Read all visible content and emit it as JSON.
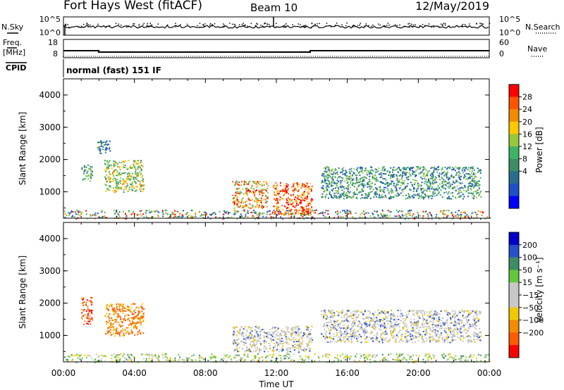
{
  "header": {
    "station": "Fort Hays West (fitACF)",
    "beam": "Beam 10",
    "date": "12/May/2019",
    "cpid_label": "CPID",
    "cpid_value": "normal (fast) 151 IF"
  },
  "top_panels": {
    "noise": {
      "left_label": "N.Sky",
      "right_label": "N.Search",
      "left_ticks": [
        "10^5",
        "10^0"
      ],
      "right_ticks": [
        "10^5",
        "10^0"
      ]
    },
    "freq": {
      "left_label_1": "Freq.",
      "left_label_2": "[MHz]",
      "right_label": "Nave",
      "left_ticks": [
        "18",
        "8"
      ],
      "right_ticks": [
        "60",
        "0"
      ]
    }
  },
  "chart_data": [
    {
      "type": "heatmap",
      "name": "power",
      "ylabel": "Slant Range [km]",
      "ylim": [
        180,
        4500
      ],
      "yticks": [
        "4000",
        "3000",
        "2000",
        "1000"
      ],
      "xlim": [
        0,
        24
      ],
      "colorbar": {
        "label": "Power [dB]",
        "ticks": [
          "28",
          "24",
          "20",
          "16",
          "12",
          "8",
          "4"
        ],
        "colors": [
          "#ff0000",
          "#ff5500",
          "#f08c00",
          "#ffc800",
          "#96c83c",
          "#3cb464",
          "#3c8c64",
          "#286e8c",
          "#1e50c8",
          "#0000ff"
        ]
      },
      "regions": [
        {
          "t": [
            1.0,
            1.6
          ],
          "r": [
            1350,
            1900
          ],
          "level": "green"
        },
        {
          "t": [
            1.8,
            2.6
          ],
          "r": [
            2200,
            2600
          ],
          "level": "blue"
        },
        {
          "t": [
            2.3,
            4.5
          ],
          "r": [
            1000,
            2000
          ],
          "level": "green-yellow"
        },
        {
          "t": [
            9.5,
            11.5
          ],
          "r": [
            500,
            1350
          ],
          "level": "yellow-red"
        },
        {
          "t": [
            11.8,
            14.0
          ],
          "r": [
            300,
            1300
          ],
          "level": "red-orange"
        },
        {
          "t": [
            14.5,
            23.5
          ],
          "r": [
            800,
            1800
          ],
          "level": "blue-green"
        },
        {
          "t": [
            0.0,
            24.0
          ],
          "r": [
            180,
            450
          ],
          "level": "mixed"
        }
      ]
    },
    {
      "type": "heatmap",
      "name": "velocity",
      "ylabel": "Slant Range [km]",
      "ylim": [
        180,
        4500
      ],
      "yticks": [
        "4000",
        "3000",
        "2000",
        "1000"
      ],
      "xlim": [
        0,
        24
      ],
      "xticks": [
        "00:00",
        "04:00",
        "08:00",
        "12:00",
        "16:00",
        "20:00",
        "00:00"
      ],
      "xlabel": "Time UT",
      "colorbar": {
        "label": "Velocity [m s⁻¹]",
        "ticks": [
          "200",
          "100",
          "50",
          "15",
          "−15",
          "−50",
          "−100",
          "−200"
        ],
        "colors": [
          "#0000c8",
          "#2850c8",
          "#3c8c64",
          "#64c83c",
          "#c8c8c8",
          "#c8c8c8",
          "#f0c800",
          "#f08c00",
          "#ff5a00",
          "#ff0000"
        ]
      },
      "regions": [
        {
          "t": [
            1.0,
            1.6
          ],
          "r": [
            1350,
            2200
          ],
          "level": "red-orange"
        },
        {
          "t": [
            2.3,
            4.5
          ],
          "r": [
            1000,
            2000
          ],
          "level": "orange"
        },
        {
          "t": [
            9.5,
            14.0
          ],
          "r": [
            500,
            1300
          ],
          "level": "gray"
        },
        {
          "t": [
            14.5,
            23.5
          ],
          "r": [
            800,
            1800
          ],
          "level": "gray"
        },
        {
          "t": [
            0.0,
            24.0
          ],
          "r": [
            180,
            450
          ],
          "level": "green-yellow"
        }
      ]
    }
  ]
}
